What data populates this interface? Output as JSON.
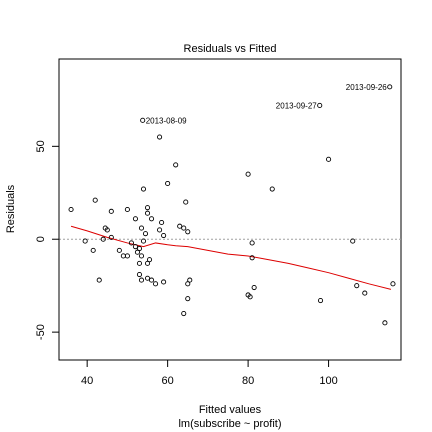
{
  "chart_data": {
    "type": "scatter",
    "title": "Residuals vs Fitted",
    "xlabel": "Fitted values",
    "xsublabel": "lm(subscribe ~ profit)",
    "ylabel": "Residuals",
    "xlim": [
      33,
      118
    ],
    "ylim": [
      -65,
      97
    ],
    "xticks": [
      40,
      60,
      80,
      100
    ],
    "yticks": [
      -50,
      0,
      50
    ],
    "grid": false,
    "reference_line_y": 0,
    "colors": {
      "points": "#000000",
      "smooth": "#dd0000",
      "reference": "#a0a0a0"
    },
    "points": [
      {
        "x": 36,
        "y": 16
      },
      {
        "x": 39.5,
        "y": -1
      },
      {
        "x": 41.5,
        "y": -6
      },
      {
        "x": 42,
        "y": 21
      },
      {
        "x": 43,
        "y": -22
      },
      {
        "x": 44,
        "y": 0
      },
      {
        "x": 44.5,
        "y": 6
      },
      {
        "x": 45,
        "y": 5
      },
      {
        "x": 46,
        "y": 15
      },
      {
        "x": 46,
        "y": 1
      },
      {
        "x": 48,
        "y": -6
      },
      {
        "x": 49,
        "y": -9
      },
      {
        "x": 50,
        "y": 16
      },
      {
        "x": 50,
        "y": -9
      },
      {
        "x": 51,
        "y": -2
      },
      {
        "x": 52,
        "y": 11
      },
      {
        "x": 52,
        "y": -4
      },
      {
        "x": 52.5,
        "y": -7
      },
      {
        "x": 53,
        "y": -5
      },
      {
        "x": 53,
        "y": -13
      },
      {
        "x": 53,
        "y": -19
      },
      {
        "x": 53.5,
        "y": -9
      },
      {
        "x": 53.5,
        "y": -22
      },
      {
        "x": 53.5,
        "y": 6
      },
      {
        "x": 54,
        "y": -1
      },
      {
        "x": 54,
        "y": 27
      },
      {
        "x": 54.5,
        "y": 3
      },
      {
        "x": 55,
        "y": 14
      },
      {
        "x": 55,
        "y": 17
      },
      {
        "x": 55,
        "y": -13
      },
      {
        "x": 55,
        "y": -21
      },
      {
        "x": 55.5,
        "y": -11
      },
      {
        "x": 56,
        "y": -22
      },
      {
        "x": 56,
        "y": 11
      },
      {
        "x": 57,
        "y": -24
      },
      {
        "x": 58,
        "y": 5
      },
      {
        "x": 58,
        "y": 55
      },
      {
        "x": 58.5,
        "y": 9
      },
      {
        "x": 59,
        "y": 2
      },
      {
        "x": 59,
        "y": -23
      },
      {
        "x": 60,
        "y": 30
      },
      {
        "x": 62,
        "y": 40
      },
      {
        "x": 63,
        "y": 7
      },
      {
        "x": 64,
        "y": 6
      },
      {
        "x": 64,
        "y": -40
      },
      {
        "x": 64.5,
        "y": 20
      },
      {
        "x": 65,
        "y": 4
      },
      {
        "x": 65,
        "y": -24
      },
      {
        "x": 65,
        "y": -32
      },
      {
        "x": 65.5,
        "y": -22
      },
      {
        "x": 80,
        "y": 35
      },
      {
        "x": 80,
        "y": -30
      },
      {
        "x": 80.5,
        "y": -31
      },
      {
        "x": 81,
        "y": -2
      },
      {
        "x": 81,
        "y": -10
      },
      {
        "x": 81.5,
        "y": -26
      },
      {
        "x": 86,
        "y": 27
      },
      {
        "x": 98,
        "y": -33
      },
      {
        "x": 100,
        "y": 43
      },
      {
        "x": 106,
        "y": -1
      },
      {
        "x": 107,
        "y": -25
      },
      {
        "x": 109,
        "y": -29
      },
      {
        "x": 114,
        "y": -45
      },
      {
        "x": 116,
        "y": -24
      },
      {
        "x": 53.8,
        "y": 64
      },
      {
        "x": 97.8,
        "y": 72
      },
      {
        "x": 115.2,
        "y": 82
      }
    ],
    "point_labels": [
      {
        "text": "2013-08-09",
        "x": 53.8,
        "y": 64,
        "side": "right"
      },
      {
        "text": "2013-09-27",
        "x": 97.8,
        "y": 72,
        "side": "left"
      },
      {
        "text": "2013-09-26",
        "x": 115.2,
        "y": 82,
        "side": "left"
      }
    ],
    "smooth": {
      "x": [
        36,
        40,
        45,
        50,
        54,
        57,
        60,
        62,
        65,
        70,
        75,
        80,
        85,
        90,
        95,
        100,
        105,
        110,
        115.5
      ],
      "y": [
        7,
        4.5,
        1,
        -2,
        -4,
        -2,
        -3,
        -3.5,
        -4,
        -6,
        -8,
        -9,
        -11,
        -13,
        -15.5,
        -18,
        -21,
        -24,
        -27
      ]
    }
  }
}
